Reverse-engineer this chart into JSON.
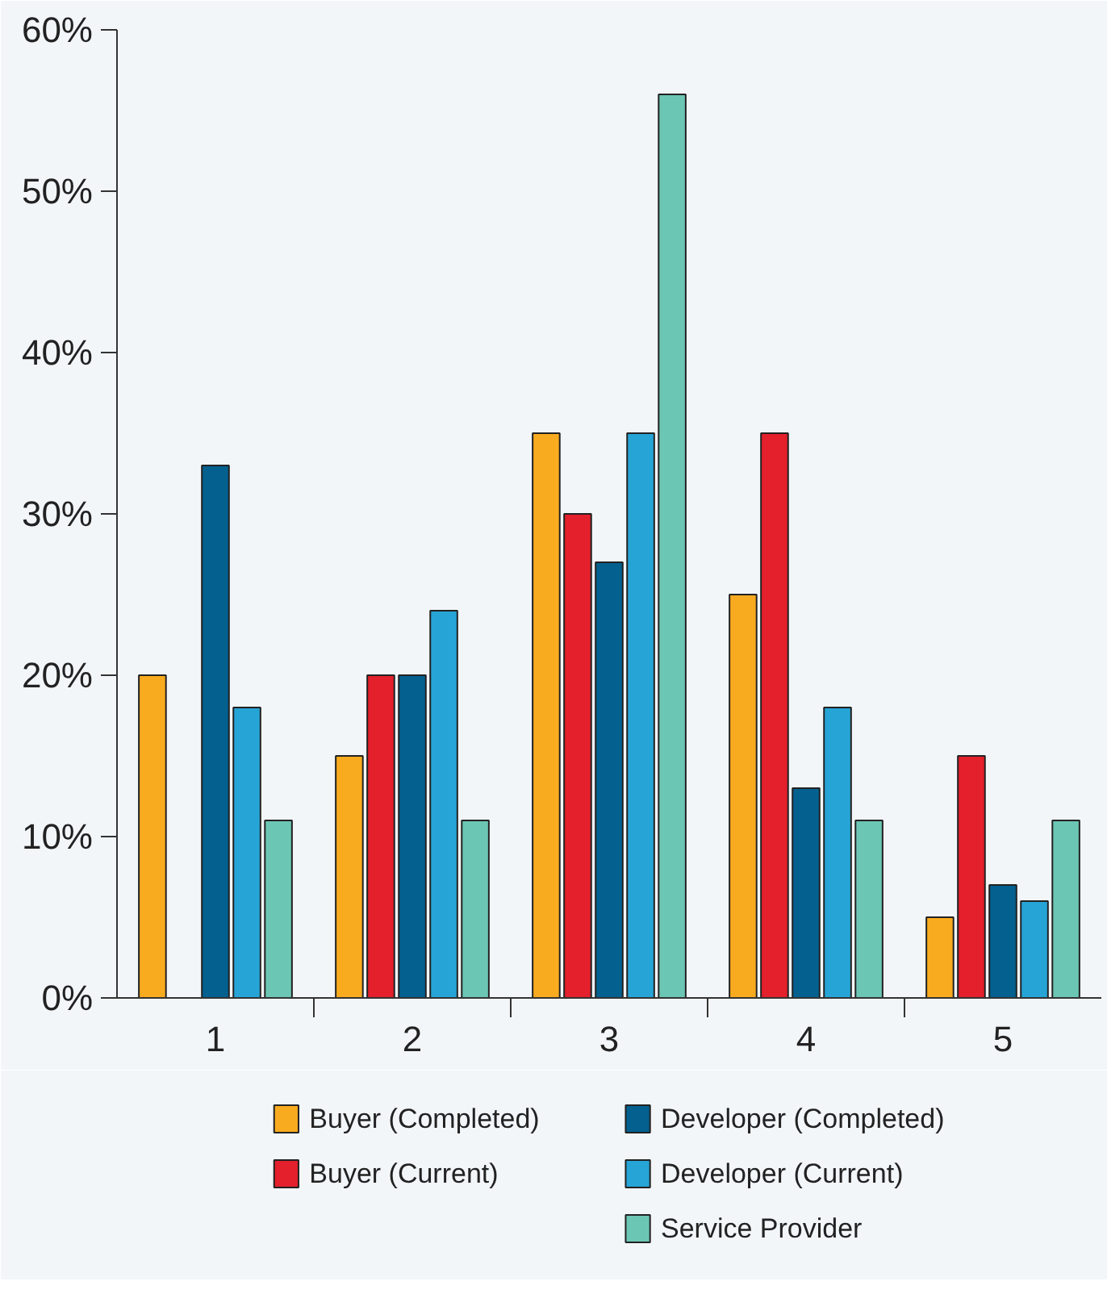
{
  "chart_data": {
    "type": "bar",
    "categories": [
      "1",
      "2",
      "3",
      "4",
      "5"
    ],
    "series": [
      {
        "name": "Buyer (Completed)",
        "color": "#f9ab1f",
        "values": [
          20,
          15,
          35,
          25,
          5
        ]
      },
      {
        "name": "Buyer (Current)",
        "color": "#e3202c",
        "values": [
          null,
          20,
          30,
          35,
          15
        ]
      },
      {
        "name": "Developer (Completed)",
        "color": "#03608f",
        "values": [
          33,
          20,
          27,
          13,
          7
        ]
      },
      {
        "name": "Developer (Current)",
        "color": "#26a4d6",
        "values": [
          18,
          24,
          35,
          18,
          6
        ]
      },
      {
        "name": "Service Provider",
        "color": "#6cc6b4",
        "values": [
          11,
          11,
          56,
          11,
          11
        ]
      }
    ],
    "ylim": [
      0,
      60
    ],
    "yticks": [
      {
        "value": 0,
        "label": "0%"
      },
      {
        "value": 10,
        "label": "10%"
      },
      {
        "value": 20,
        "label": "20%"
      },
      {
        "value": 30,
        "label": "30%"
      },
      {
        "value": 40,
        "label": "40%"
      },
      {
        "value": 50,
        "label": "50%"
      },
      {
        "value": 60,
        "label": "60%"
      }
    ],
    "grid": false,
    "legend": "bottom"
  }
}
